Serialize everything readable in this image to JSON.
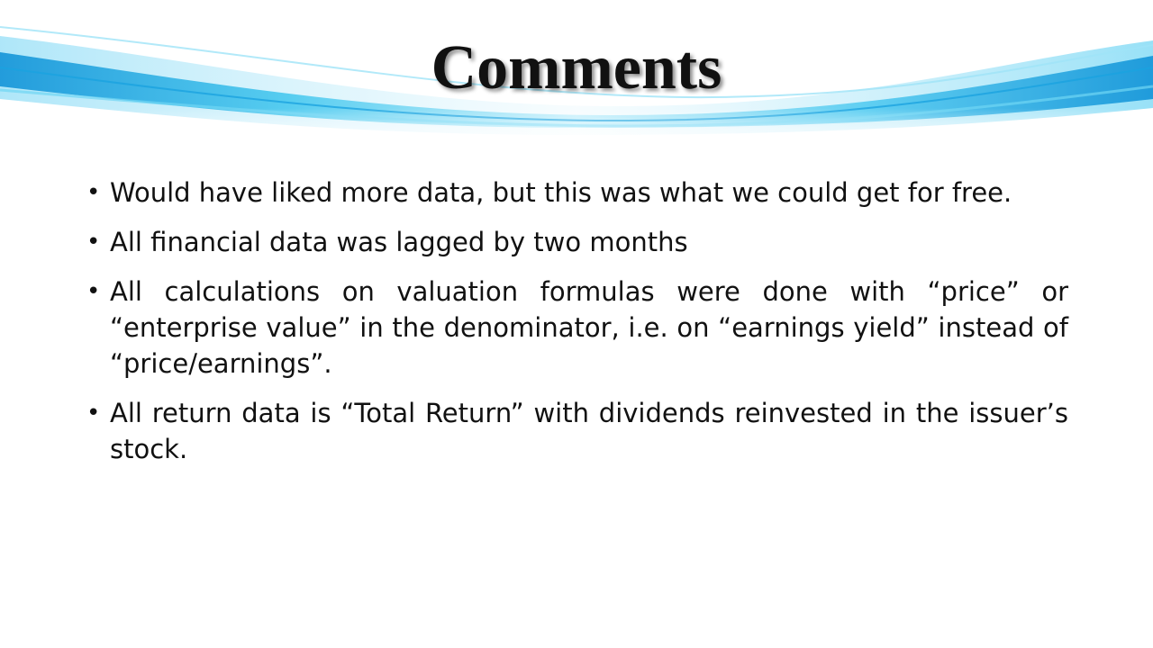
{
  "slide": {
    "title": "Comments",
    "bullet_glyph": "•",
    "bullets": [
      "Would have liked more data, but this was what we could get for free.",
      "All financial data was lagged by two months",
      "All calculations on valuation formulas were done with “price” or “enterprise value” in the denominator, i.e. on “earnings yield” instead of “price/earnings”.",
      "All return data is “Total Return” with dividends reinvested in the issuer’s stock."
    ]
  },
  "colors": {
    "accent_light": "#bfeefb",
    "accent_mid": "#3fc6ee",
    "accent_dark": "#0a8fd6",
    "text": "#111111",
    "background": "#ffffff"
  }
}
